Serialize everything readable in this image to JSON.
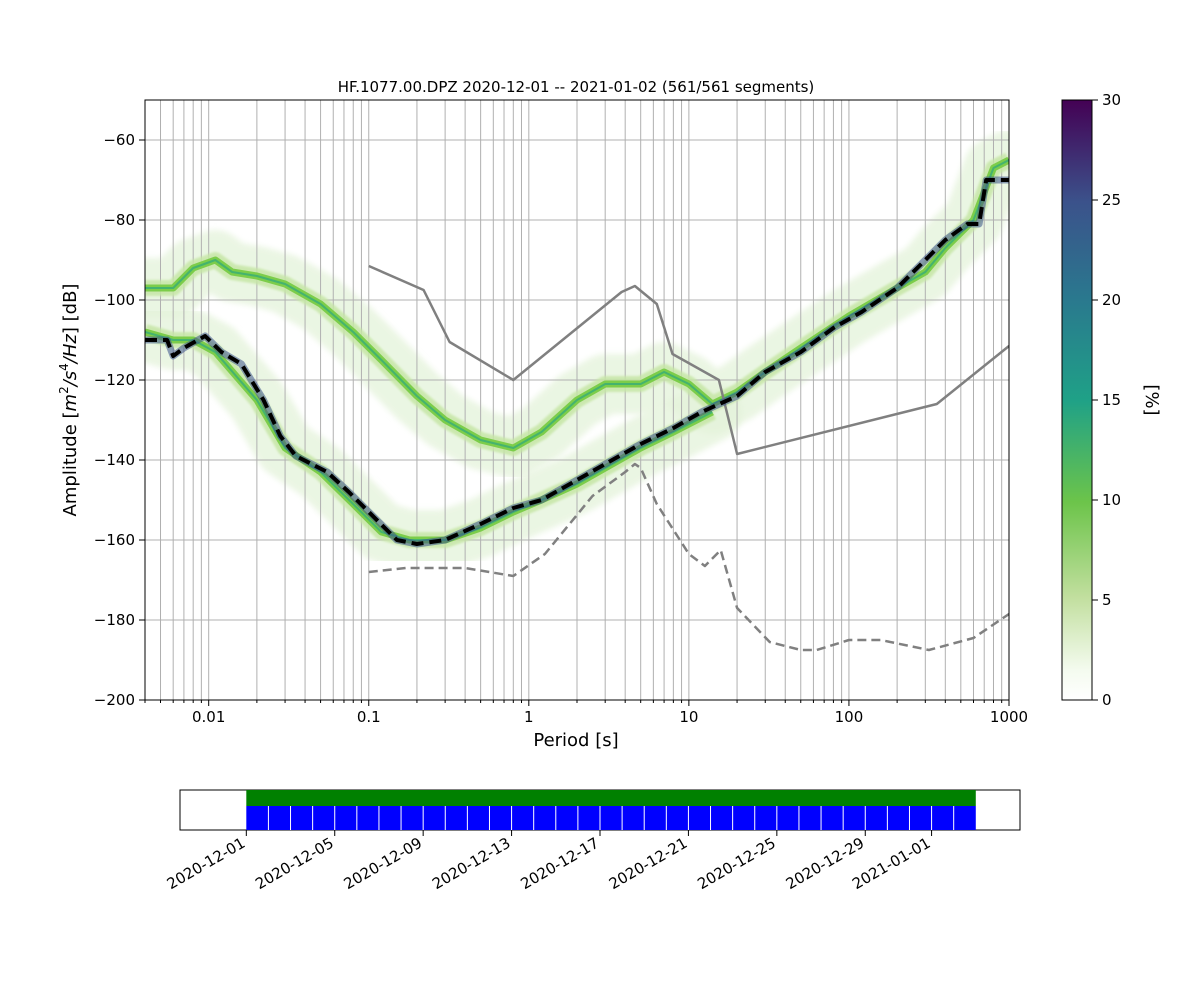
{
  "chart_data": [
    {
      "type": "heatmap",
      "title": "HF.1077.00.DPZ   2020-12-01 -- 2021-01-02  (561/561 segments)",
      "xlabel": "Period [s]",
      "ylabel": "Amplitude [m²/s⁴/Hz] [dB]",
      "ylabel_parts": {
        "prefix": "Amplitude [",
        "unit1": "m",
        "sup1": "2",
        "unit2": "/s",
        "sup2": "4",
        "unit3": "/Hz",
        "suffix": "] [dB]"
      },
      "x_scale": "log",
      "xlim": [
        0.004,
        1000
      ],
      "ylim": [
        -200,
        -50
      ],
      "x_ticks": [
        0.01,
        0.1,
        1,
        10,
        100,
        1000
      ],
      "x_tick_labels": [
        "0.01",
        "0.1",
        "1",
        "10",
        "100",
        "1000"
      ],
      "y_ticks": [
        -60,
        -80,
        -100,
        -120,
        -140,
        -160,
        -180,
        -200
      ],
      "y_tick_labels": [
        "−60",
        "−80",
        "−100",
        "−120",
        "−140",
        "−160",
        "−180",
        "−200"
      ],
      "grid": true,
      "colorbar": {
        "label": "[%]",
        "ticks": [
          0,
          5,
          10,
          15,
          20,
          25,
          30
        ],
        "tick_labels": [
          "0",
          "5",
          "10",
          "15",
          "20",
          "25",
          "30"
        ],
        "colormap": "viridis_r",
        "range": [
          0,
          30
        ]
      },
      "ppsd_modes": [
        {
          "name": "upper band",
          "color": "#7ccd4a",
          "points": [
            [
              0.004,
              -97
            ],
            [
              0.006,
              -97
            ],
            [
              0.008,
              -92
            ],
            [
              0.011,
              -90
            ],
            [
              0.014,
              -93
            ],
            [
              0.02,
              -94
            ],
            [
              0.03,
              -96
            ],
            [
              0.05,
              -101
            ],
            [
              0.08,
              -108
            ],
            [
              0.12,
              -115
            ],
            [
              0.2,
              -124
            ],
            [
              0.3,
              -130
            ],
            [
              0.5,
              -135
            ],
            [
              0.8,
              -137
            ],
            [
              1.2,
              -133
            ],
            [
              2,
              -125
            ],
            [
              3,
              -121
            ],
            [
              5,
              -121
            ],
            [
              7,
              -118
            ],
            [
              10,
              -121
            ],
            [
              14,
              -126
            ],
            [
              20,
              -123
            ],
            [
              30,
              -118
            ],
            [
              50,
              -112
            ],
            [
              100,
              -104
            ],
            [
              200,
              -97
            ],
            [
              300,
              -93
            ],
            [
              400,
              -87
            ],
            [
              600,
              -80
            ],
            [
              800,
              -67
            ],
            [
              1000,
              -65
            ]
          ]
        },
        {
          "name": "lower band",
          "color": "#7ccd4a",
          "points": [
            [
              0.004,
              -108
            ],
            [
              0.006,
              -110
            ],
            [
              0.008,
              -110
            ],
            [
              0.011,
              -113
            ],
            [
              0.02,
              -125
            ],
            [
              0.03,
              -137
            ],
            [
              0.05,
              -143
            ],
            [
              0.08,
              -151
            ],
            [
              0.12,
              -158
            ],
            [
              0.18,
              -160
            ],
            [
              0.3,
              -160
            ],
            [
              0.5,
              -157
            ],
            [
              0.8,
              -153
            ],
            [
              1.2,
              -150
            ],
            [
              2,
              -146
            ],
            [
              3,
              -142
            ],
            [
              5,
              -137
            ],
            [
              8,
              -133
            ],
            [
              14,
              -128
            ]
          ]
        }
      ],
      "series": [
        {
          "style": "solid",
          "color": "#808080",
          "points": [
            [
              0.1,
              -91.5
            ],
            [
              0.22,
              -97.5
            ],
            [
              0.32,
              -110.5
            ],
            [
              0.8,
              -120
            ],
            [
              3.8,
              -98
            ],
            [
              4.6,
              -96.5
            ],
            [
              6.3,
              -101
            ],
            [
              7.9,
              -113.5
            ],
            [
              15.4,
              -120
            ],
            [
              20,
              -138.5
            ],
            [
              354,
              -126
            ],
            [
              1000,
              -111.5
            ]
          ]
        },
        {
          "style": "dashed",
          "color": "#808080",
          "points": [
            [
              0.1,
              -168
            ],
            [
              0.17,
              -167
            ],
            [
              0.4,
              -167
            ],
            [
              0.8,
              -169
            ],
            [
              1.26,
              -163.5
            ],
            [
              2.5,
              -149
            ],
            [
              4,
              -143
            ],
            [
              4.6,
              -141
            ],
            [
              5,
              -142
            ],
            [
              6.3,
              -151
            ],
            [
              10,
              -163.5
            ],
            [
              12.6,
              -166.5
            ],
            [
              15.8,
              -162.5
            ],
            [
              20,
              -177
            ],
            [
              32,
              -185.5
            ],
            [
              50,
              -187.5
            ],
            [
              63,
              -187.5
            ],
            [
              100,
              -185
            ],
            [
              158,
              -185
            ],
            [
              316,
              -187.5
            ],
            [
              600,
              -184.5
            ],
            [
              1000,
              -178.5
            ]
          ]
        },
        {
          "style": "dashed",
          "color": "#000000",
          "points": [
            [
              0.004,
              -110
            ],
            [
              0.0055,
              -110
            ],
            [
              0.006,
              -114
            ],
            [
              0.007,
              -112
            ],
            [
              0.0095,
              -109
            ],
            [
              0.012,
              -113
            ],
            [
              0.016,
              -116
            ],
            [
              0.022,
              -125
            ],
            [
              0.028,
              -134
            ],
            [
              0.035,
              -139
            ],
            [
              0.055,
              -143
            ],
            [
              0.075,
              -148
            ],
            [
              0.1,
              -153
            ],
            [
              0.15,
              -160
            ],
            [
              0.2,
              -161
            ],
            [
              0.3,
              -160
            ],
            [
              0.5,
              -156
            ],
            [
              0.8,
              -152
            ],
            [
              1.2,
              -150
            ],
            [
              2,
              -145
            ],
            [
              3,
              -141
            ],
            [
              5,
              -136
            ],
            [
              8,
              -132
            ],
            [
              12,
              -128
            ],
            [
              20,
              -124
            ],
            [
              30,
              -118
            ],
            [
              50,
              -113
            ],
            [
              80,
              -107
            ],
            [
              120,
              -103
            ],
            [
              200,
              -97
            ],
            [
              300,
              -90
            ],
            [
              400,
              -85
            ],
            [
              550,
              -81
            ],
            [
              650,
              -81
            ],
            [
              720,
              -70
            ],
            [
              1000,
              -70
            ]
          ]
        }
      ]
    },
    {
      "type": "bar",
      "x_tick_labels": [
        "2020-12-01",
        "2020-12-05",
        "2020-12-09",
        "2020-12-13",
        "2020-12-17",
        "2020-12-21",
        "2020-12-25",
        "2020-12-29",
        "2021-01-01"
      ],
      "xlim": [
        "2020-11-28",
        "2021-01-05"
      ],
      "coverage": {
        "start": "2020-12-01",
        "end": "2021-01-03",
        "segments": 33
      },
      "colors": {
        "top": "#008000",
        "bottom": "#0000ff"
      }
    }
  ]
}
